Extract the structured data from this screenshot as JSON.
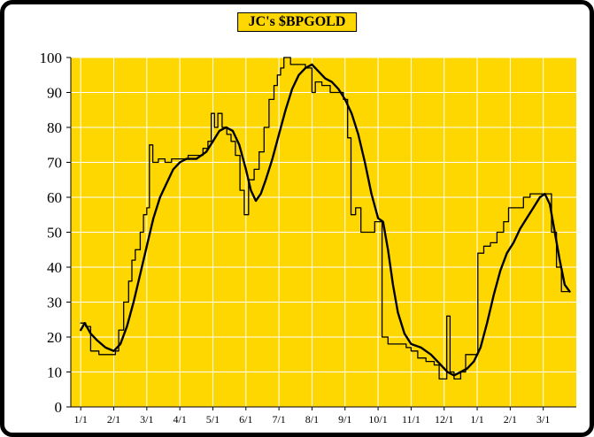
{
  "chart_data": {
    "type": "line",
    "title": "JC's $BPGOLD",
    "xlabel": "",
    "ylabel": "",
    "xlim": [
      -0.3,
      15.0
    ],
    "ylim": [
      0,
      100
    ],
    "grid": true,
    "legend": "none",
    "x_tick_positions": [
      0,
      1,
      2,
      3,
      4,
      5,
      6,
      7,
      8,
      9,
      10,
      11,
      12,
      13,
      14
    ],
    "x_tick_labels": [
      "1/1",
      "2/1",
      "3/1",
      "4/1",
      "5/1",
      "6/1",
      "7/1",
      "8/1",
      "9/1",
      "10/1",
      "11/1",
      "12/1",
      "1/1",
      "2/1",
      "3/1"
    ],
    "y_ticks": [
      0,
      10,
      20,
      30,
      40,
      50,
      60,
      70,
      80,
      90,
      100
    ],
    "colors": {
      "plot_bg": "#FFD700",
      "title_bg": "#FFD700",
      "grid": "#FFFFFF",
      "line": "#000000",
      "axis": "#000000",
      "text": "#000000",
      "frame": "#000000"
    },
    "series": [
      {
        "name": "bpgold-step-line",
        "style": "step",
        "stroke_width": 1.3,
        "points": [
          [
            0.0,
            24
          ],
          [
            0.15,
            23
          ],
          [
            0.3,
            16
          ],
          [
            0.55,
            15
          ],
          [
            0.95,
            15
          ],
          [
            1.05,
            16
          ],
          [
            1.15,
            22
          ],
          [
            1.3,
            30
          ],
          [
            1.45,
            36
          ],
          [
            1.55,
            42
          ],
          [
            1.65,
            45
          ],
          [
            1.8,
            50
          ],
          [
            1.9,
            55
          ],
          [
            2.0,
            57
          ],
          [
            2.08,
            75
          ],
          [
            2.18,
            70
          ],
          [
            2.35,
            71
          ],
          [
            2.55,
            70
          ],
          [
            2.75,
            71
          ],
          [
            3.0,
            71
          ],
          [
            3.25,
            72
          ],
          [
            3.5,
            72
          ],
          [
            3.7,
            74
          ],
          [
            3.85,
            76
          ],
          [
            3.95,
            84
          ],
          [
            4.05,
            80
          ],
          [
            4.15,
            84
          ],
          [
            4.28,
            80
          ],
          [
            4.42,
            78
          ],
          [
            4.55,
            76
          ],
          [
            4.68,
            72
          ],
          [
            4.82,
            62
          ],
          [
            4.95,
            55
          ],
          [
            5.08,
            65
          ],
          [
            5.25,
            68
          ],
          [
            5.4,
            73
          ],
          [
            5.55,
            80
          ],
          [
            5.7,
            88
          ],
          [
            5.85,
            92
          ],
          [
            5.95,
            95
          ],
          [
            6.05,
            97
          ],
          [
            6.15,
            100
          ],
          [
            6.35,
            98
          ],
          [
            6.6,
            98
          ],
          [
            6.8,
            97
          ],
          [
            7.0,
            90
          ],
          [
            7.1,
            93
          ],
          [
            7.3,
            92
          ],
          [
            7.55,
            90
          ],
          [
            7.8,
            90
          ],
          [
            7.95,
            88
          ],
          [
            8.08,
            77
          ],
          [
            8.18,
            55
          ],
          [
            8.32,
            57
          ],
          [
            8.48,
            50
          ],
          [
            8.75,
            50
          ],
          [
            8.9,
            53
          ],
          [
            9.05,
            53
          ],
          [
            9.12,
            20
          ],
          [
            9.3,
            18
          ],
          [
            9.6,
            18
          ],
          [
            9.85,
            17
          ],
          [
            10.0,
            16
          ],
          [
            10.2,
            14
          ],
          [
            10.45,
            13
          ],
          [
            10.7,
            12
          ],
          [
            10.85,
            8
          ],
          [
            11.02,
            8
          ],
          [
            11.08,
            26
          ],
          [
            11.18,
            10
          ],
          [
            11.3,
            8
          ],
          [
            11.5,
            10
          ],
          [
            11.65,
            15
          ],
          [
            11.95,
            15
          ],
          [
            12.02,
            44
          ],
          [
            12.2,
            46
          ],
          [
            12.4,
            47
          ],
          [
            12.6,
            50
          ],
          [
            12.8,
            53
          ],
          [
            12.95,
            57
          ],
          [
            13.2,
            57
          ],
          [
            13.4,
            60
          ],
          [
            13.6,
            61
          ],
          [
            14.1,
            61
          ],
          [
            14.25,
            50
          ],
          [
            14.4,
            40
          ],
          [
            14.55,
            33
          ],
          [
            14.8,
            33
          ]
        ]
      },
      {
        "name": "bpgold-smooth-line",
        "style": "smooth",
        "stroke_width": 2.4,
        "points": [
          [
            0.0,
            22
          ],
          [
            0.12,
            24
          ],
          [
            0.3,
            21
          ],
          [
            0.5,
            19
          ],
          [
            0.75,
            17
          ],
          [
            1.0,
            16
          ],
          [
            1.2,
            18
          ],
          [
            1.4,
            23
          ],
          [
            1.6,
            30
          ],
          [
            1.8,
            38
          ],
          [
            2.0,
            46
          ],
          [
            2.2,
            54
          ],
          [
            2.4,
            60
          ],
          [
            2.6,
            64
          ],
          [
            2.8,
            68
          ],
          [
            3.0,
            70
          ],
          [
            3.2,
            71
          ],
          [
            3.5,
            71
          ],
          [
            3.8,
            73
          ],
          [
            4.0,
            76
          ],
          [
            4.2,
            79
          ],
          [
            4.4,
            80
          ],
          [
            4.6,
            79
          ],
          [
            4.8,
            75
          ],
          [
            5.0,
            68
          ],
          [
            5.15,
            62
          ],
          [
            5.3,
            59
          ],
          [
            5.45,
            61
          ],
          [
            5.6,
            65
          ],
          [
            5.8,
            71
          ],
          [
            6.0,
            78
          ],
          [
            6.2,
            85
          ],
          [
            6.4,
            91
          ],
          [
            6.6,
            95
          ],
          [
            6.8,
            97
          ],
          [
            7.0,
            98
          ],
          [
            7.2,
            96
          ],
          [
            7.4,
            94
          ],
          [
            7.6,
            93
          ],
          [
            7.8,
            91
          ],
          [
            8.0,
            88
          ],
          [
            8.2,
            84
          ],
          [
            8.4,
            78
          ],
          [
            8.6,
            70
          ],
          [
            8.8,
            61
          ],
          [
            9.0,
            54
          ],
          [
            9.15,
            53
          ],
          [
            9.3,
            45
          ],
          [
            9.45,
            35
          ],
          [
            9.6,
            27
          ],
          [
            9.8,
            21
          ],
          [
            10.0,
            18
          ],
          [
            10.3,
            17
          ],
          [
            10.6,
            15
          ],
          [
            10.9,
            12
          ],
          [
            11.1,
            10
          ],
          [
            11.3,
            9
          ],
          [
            11.5,
            10
          ],
          [
            11.7,
            11
          ],
          [
            11.9,
            13
          ],
          [
            12.1,
            17
          ],
          [
            12.3,
            24
          ],
          [
            12.5,
            32
          ],
          [
            12.7,
            39
          ],
          [
            12.9,
            44
          ],
          [
            13.1,
            47
          ],
          [
            13.3,
            51
          ],
          [
            13.5,
            54
          ],
          [
            13.7,
            57
          ],
          [
            13.9,
            60
          ],
          [
            14.05,
            61
          ],
          [
            14.2,
            58
          ],
          [
            14.35,
            50
          ],
          [
            14.5,
            42
          ],
          [
            14.65,
            35
          ],
          [
            14.8,
            33
          ]
        ]
      }
    ]
  }
}
